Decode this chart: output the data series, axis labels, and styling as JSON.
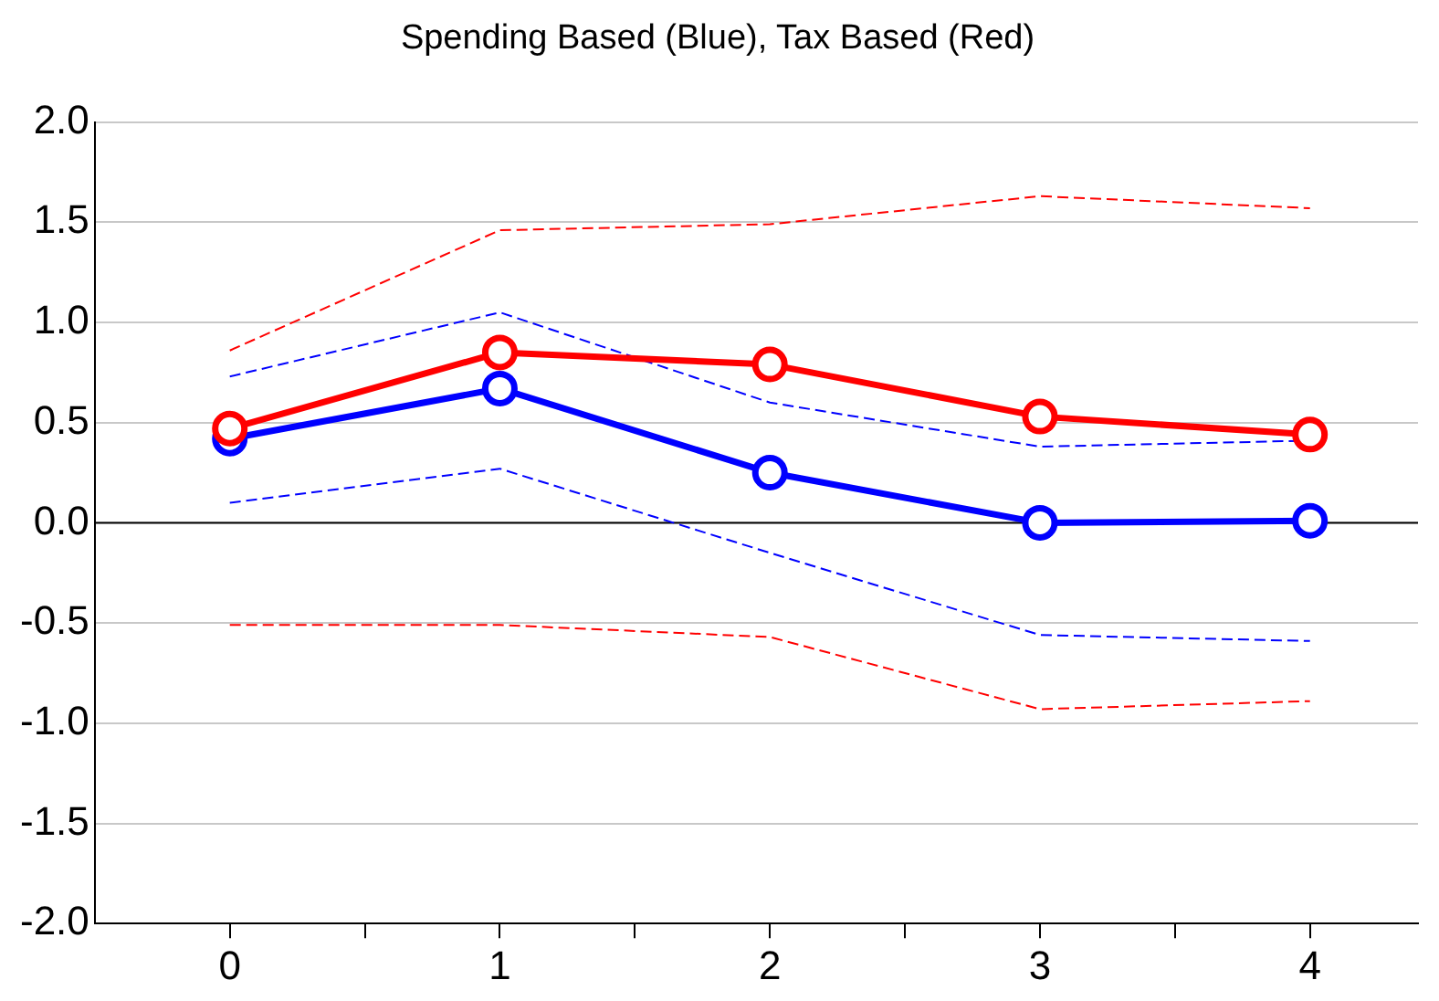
{
  "chart_data": {
    "type": "line",
    "title": "Spending Based (Blue), Tax Based (Red)",
    "x": [
      0,
      1,
      2,
      3,
      4
    ],
    "xlim": [
      -0.5,
      4.4
    ],
    "xticks": [
      0,
      {
        "value": 0.5,
        "label": null
      },
      1,
      {
        "value": 1.5,
        "label": null
      },
      2,
      {
        "value": 2.5,
        "label": null
      },
      3,
      {
        "value": 3.5,
        "label": null
      },
      4
    ],
    "ylim": [
      -2,
      2
    ],
    "yticks": [
      {
        "value": -2,
        "label": "-2.0"
      },
      -1.5,
      {
        "value": -1,
        "label": "-1.0"
      },
      -0.5,
      {
        "value": 0,
        "label": "0.0"
      },
      0.5,
      {
        "value": 1,
        "label": "1.0"
      },
      1.5,
      {
        "value": 2,
        "label": "2.0"
      }
    ],
    "grid": "y",
    "legend": false,
    "ref_lines": [
      {
        "axis": "y",
        "value": 0,
        "color": "#000000",
        "line_style": "solid"
      }
    ],
    "series": [
      {
        "color": "#ff0000",
        "values": [
          0.86,
          1.46,
          1.49,
          1.63,
          1.57
        ],
        "line_style": "dashed",
        "marker": "none"
      },
      {
        "color": "#ff0000",
        "values": [
          -0.51,
          -0.51,
          -0.57,
          -0.93,
          -0.89
        ],
        "line_style": "dashed",
        "marker": "none"
      },
      {
        "color": "#0000ff",
        "values": [
          0.73,
          1.05,
          0.6,
          0.38,
          0.41
        ],
        "line_style": "dashed",
        "marker": "none"
      },
      {
        "color": "#0000ff",
        "values": [
          0.1,
          0.27,
          -0.15,
          -0.56,
          -0.59
        ],
        "line_style": "dashed",
        "marker": "none"
      },
      {
        "color": "#0000ff",
        "values": [
          0.42,
          0.67,
          0.25,
          0.0,
          0.01
        ],
        "line_style": "solid",
        "marker": "circle"
      },
      {
        "color": "#ff0000",
        "values": [
          0.47,
          0.85,
          0.79,
          0.53,
          0.44
        ],
        "line_style": "solid",
        "marker": "circle"
      }
    ]
  }
}
